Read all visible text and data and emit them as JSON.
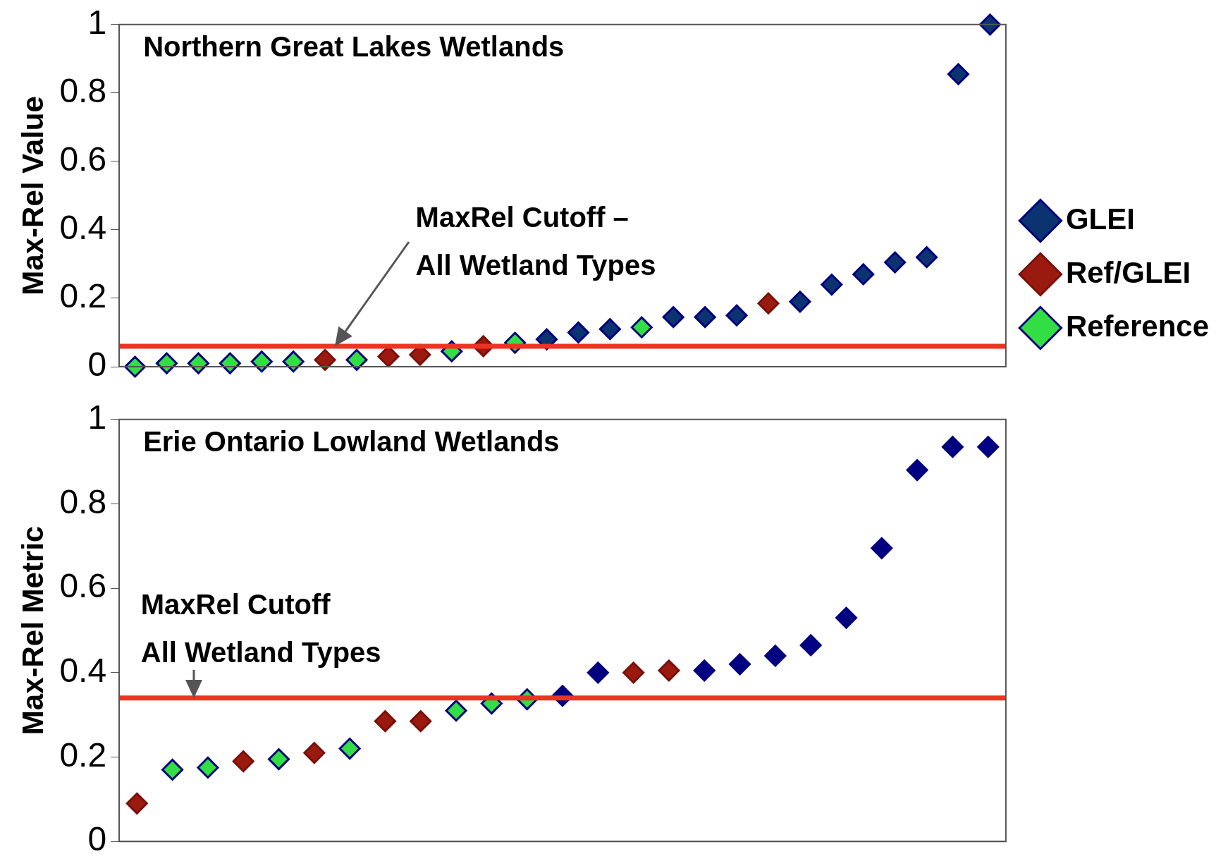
{
  "chart_data": [
    {
      "type": "scatter",
      "title": "Northern Great Lakes Wetlands",
      "ylabel": "Max-Rel Value",
      "categories": [
        null,
        null,
        null,
        null,
        null,
        null,
        null,
        null,
        null,
        null,
        null,
        null,
        null,
        null,
        null,
        null,
        null,
        null,
        null,
        null,
        null,
        null,
        null,
        null,
        null,
        null,
        null,
        null
      ],
      "ylim": [
        0,
        1
      ],
      "yticks": [
        0,
        0.2,
        0.4,
        0.6,
        0.8,
        1
      ],
      "tick_labels": "y",
      "grid": false,
      "legend": "right",
      "marker": "diamond",
      "series": [
        {
          "name": "GLEI",
          "color": "#0b3370",
          "values": [
            null,
            null,
            null,
            null,
            null,
            null,
            null,
            null,
            null,
            null,
            null,
            null,
            null,
            0.08,
            0.1,
            0.11,
            null,
            0.145,
            0.145,
            0.15,
            null,
            0.19,
            0.24,
            0.27,
            0.305,
            0.32,
            0.855,
            1.0
          ]
        },
        {
          "name": "Ref/GLEI",
          "color": "#9b1a10",
          "values": [
            null,
            null,
            null,
            null,
            null,
            null,
            0.02,
            null,
            0.03,
            0.035,
            null,
            0.06,
            null,
            null,
            null,
            null,
            null,
            null,
            null,
            null,
            0.185,
            null,
            null,
            null,
            null,
            null,
            null,
            null
          ]
        },
        {
          "name": "Reference",
          "color": "#33dd44",
          "values": [
            0.0,
            0.01,
            0.01,
            0.01,
            0.015,
            0.015,
            null,
            0.02,
            null,
            null,
            0.045,
            null,
            0.07,
            null,
            null,
            null,
            0.115,
            null,
            null,
            null,
            null,
            null,
            null,
            null,
            null,
            null,
            null,
            null
          ]
        }
      ],
      "ref_lines": [
        {
          "axis": "y",
          "value": 0.06,
          "color": "#ee3322"
        }
      ],
      "annotations": [
        {
          "text": "MaxRel Cutoff –\nAll Wetland Types",
          "y": 0.06
        }
      ]
    },
    {
      "type": "scatter",
      "title": "Erie Ontario Lowland Wetlands",
      "ylabel": "Max-Rel Metric",
      "categories": [
        null,
        null,
        null,
        null,
        null,
        null,
        null,
        null,
        null,
        null,
        null,
        null,
        null,
        null,
        null,
        null,
        null,
        null,
        null,
        null,
        null,
        null,
        null,
        null,
        null
      ],
      "ylim": [
        0,
        1
      ],
      "yticks": [
        0,
        0.2,
        0.4,
        0.6,
        0.8,
        1
      ],
      "tick_labels": "y",
      "grid": false,
      "marker": "diamond",
      "series": [
        {
          "color": "#000080",
          "values": [
            null,
            null,
            null,
            null,
            null,
            null,
            null,
            null,
            null,
            null,
            null,
            null,
            0.345,
            0.4,
            null,
            null,
            0.405,
            0.42,
            0.44,
            0.465,
            0.53,
            0.695,
            0.88,
            0.935,
            0.935
          ]
        },
        {
          "color": "#9b1a10",
          "values": [
            0.09,
            null,
            null,
            0.19,
            null,
            0.21,
            null,
            0.285,
            0.285,
            null,
            null,
            null,
            null,
            null,
            0.4,
            0.405,
            null,
            null,
            null,
            null,
            null,
            null,
            null,
            null,
            null
          ]
        },
        {
          "color": "#33dd44",
          "values": [
            null,
            0.17,
            0.175,
            null,
            0.195,
            null,
            0.22,
            null,
            null,
            0.31,
            0.327,
            0.337,
            null,
            null,
            null,
            null,
            null,
            null,
            null,
            null,
            null,
            null,
            null,
            null,
            null
          ]
        }
      ],
      "ref_lines": [
        {
          "axis": "y",
          "value": 0.34,
          "color": "#ee3322"
        }
      ],
      "annotations": [
        {
          "text": "MaxRel Cutoff\nAll Wetland Types",
          "y": 0.34
        }
      ]
    }
  ]
}
